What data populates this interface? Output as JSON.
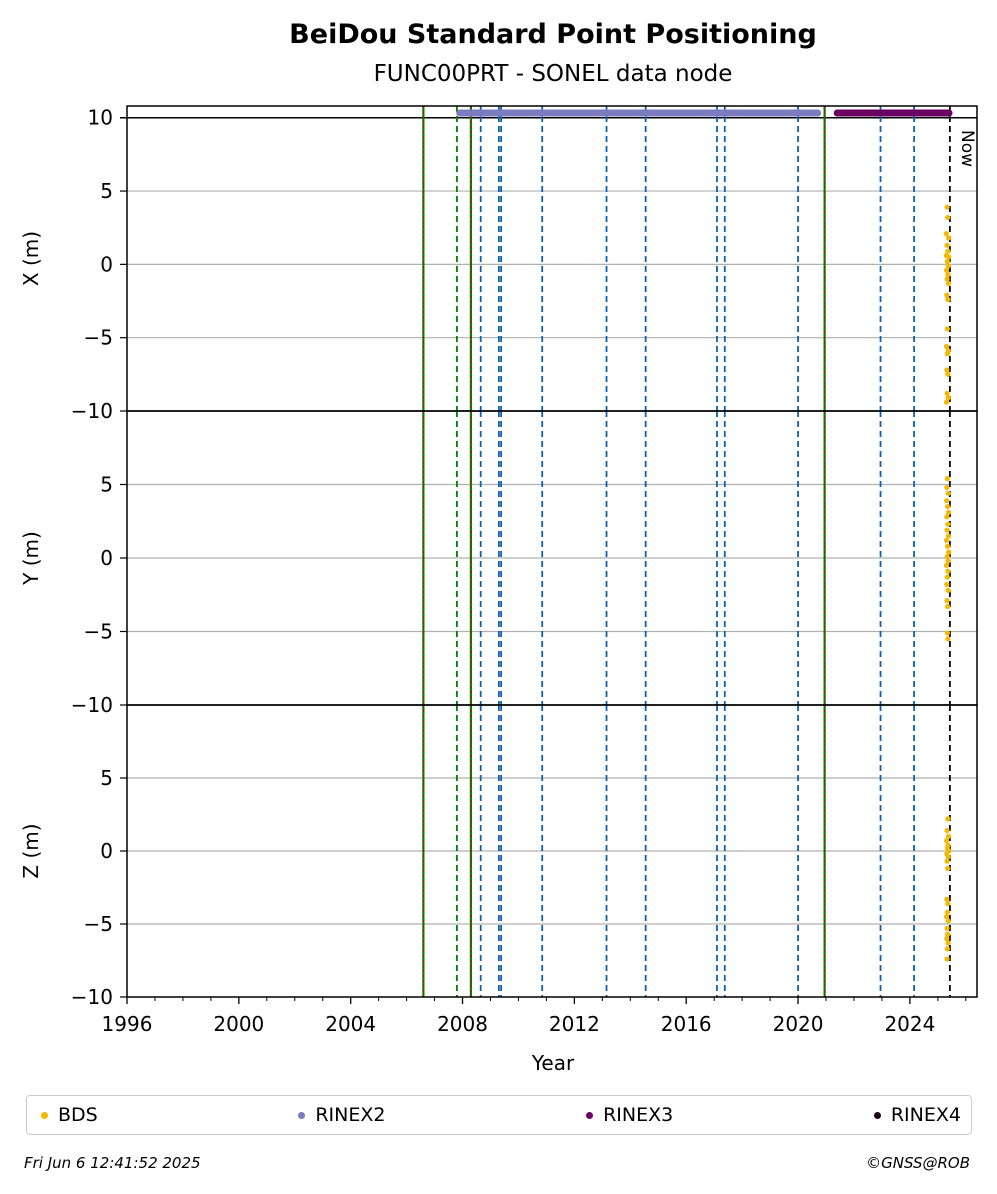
{
  "chart_data": {
    "type": "scatter",
    "title": "BeiDou Standard Point Positioning",
    "subtitle": "FUNC00PRT - SONEL data node",
    "xlabel": "Year",
    "xlim": [
      1996,
      2026.4
    ],
    "xticks": [
      1996,
      2000,
      2004,
      2008,
      2012,
      2016,
      2020,
      2024
    ],
    "now_label": "Now",
    "now_year": 2025.43,
    "panels": [
      {
        "ylabel": "X (m)",
        "ylim": [
          -10,
          10.8
        ],
        "yticks": [
          -10,
          -5,
          0,
          5,
          10
        ],
        "bds_points": [
          {
            "x": 2025.33,
            "y": 3.9
          },
          {
            "x": 2025.35,
            "y": 3.2
          },
          {
            "x": 2025.3,
            "y": 2.1
          },
          {
            "x": 2025.38,
            "y": 1.8
          },
          {
            "x": 2025.33,
            "y": 1.3
          },
          {
            "x": 2025.36,
            "y": 0.9
          },
          {
            "x": 2025.3,
            "y": 0.6
          },
          {
            "x": 2025.39,
            "y": 0.5
          },
          {
            "x": 2025.34,
            "y": 0.2
          },
          {
            "x": 2025.37,
            "y": -0.1
          },
          {
            "x": 2025.31,
            "y": -0.4
          },
          {
            "x": 2025.36,
            "y": -0.7
          },
          {
            "x": 2025.33,
            "y": -1.0
          },
          {
            "x": 2025.38,
            "y": -1.3
          },
          {
            "x": 2025.32,
            "y": -2.1
          },
          {
            "x": 2025.36,
            "y": -2.4
          },
          {
            "x": 2025.34,
            "y": -4.4
          },
          {
            "x": 2025.31,
            "y": -5.6
          },
          {
            "x": 2025.37,
            "y": -5.9
          },
          {
            "x": 2025.34,
            "y": -6.1
          },
          {
            "x": 2025.32,
            "y": -7.2
          },
          {
            "x": 2025.36,
            "y": -7.5
          },
          {
            "x": 2025.33,
            "y": -8.8
          },
          {
            "x": 2025.37,
            "y": -9.1
          },
          {
            "x": 2025.31,
            "y": -9.4
          }
        ]
      },
      {
        "ylabel": "Y (m)",
        "ylim": [
          -10,
          10
        ],
        "yticks": [
          -10,
          -5,
          0,
          5
        ],
        "bds_points": [
          {
            "x": 2025.34,
            "y": 5.4
          },
          {
            "x": 2025.32,
            "y": 4.8
          },
          {
            "x": 2025.37,
            "y": 4.4
          },
          {
            "x": 2025.31,
            "y": 3.9
          },
          {
            "x": 2025.35,
            "y": 3.5
          },
          {
            "x": 2025.38,
            "y": 3.1
          },
          {
            "x": 2025.32,
            "y": 2.8
          },
          {
            "x": 2025.36,
            "y": 2.3
          },
          {
            "x": 2025.33,
            "y": 1.9
          },
          {
            "x": 2025.38,
            "y": 1.5
          },
          {
            "x": 2025.31,
            "y": 1.2
          },
          {
            "x": 2025.35,
            "y": 0.8
          },
          {
            "x": 2025.39,
            "y": 0.4
          },
          {
            "x": 2025.33,
            "y": 0.1
          },
          {
            "x": 2025.37,
            "y": -0.2
          },
          {
            "x": 2025.31,
            "y": -0.5
          },
          {
            "x": 2025.36,
            "y": -0.9
          },
          {
            "x": 2025.34,
            "y": -1.3
          },
          {
            "x": 2025.32,
            "y": -1.8
          },
          {
            "x": 2025.37,
            "y": -2.2
          },
          {
            "x": 2025.33,
            "y": -2.9
          },
          {
            "x": 2025.35,
            "y": -3.3
          },
          {
            "x": 2025.34,
            "y": -5.1
          },
          {
            "x": 2025.36,
            "y": -5.5
          }
        ]
      },
      {
        "ylabel": "Z (m)",
        "ylim": [
          -10,
          10
        ],
        "yticks": [
          -10,
          -5,
          0,
          5
        ],
        "bds_points": [
          {
            "x": 2025.36,
            "y": 2.2
          },
          {
            "x": 2025.33,
            "y": 1.4
          },
          {
            "x": 2025.38,
            "y": 1.0
          },
          {
            "x": 2025.31,
            "y": 0.7
          },
          {
            "x": 2025.36,
            "y": 0.4
          },
          {
            "x": 2025.34,
            "y": 0.2
          },
          {
            "x": 2025.39,
            "y": 0.0
          },
          {
            "x": 2025.32,
            "y": -0.2
          },
          {
            "x": 2025.37,
            "y": -0.4
          },
          {
            "x": 2025.33,
            "y": -0.7
          },
          {
            "x": 2025.35,
            "y": -1.2
          },
          {
            "x": 2025.32,
            "y": -3.3
          },
          {
            "x": 2025.36,
            "y": -3.6
          },
          {
            "x": 2025.34,
            "y": -4.2
          },
          {
            "x": 2025.31,
            "y": -4.5
          },
          {
            "x": 2025.37,
            "y": -4.8
          },
          {
            "x": 2025.33,
            "y": -5.3
          },
          {
            "x": 2025.35,
            "y": -5.7
          },
          {
            "x": 2025.32,
            "y": -6.0
          },
          {
            "x": 2025.37,
            "y": -6.3
          },
          {
            "x": 2025.34,
            "y": -6.7
          },
          {
            "x": 2025.33,
            "y": -7.4
          }
        ]
      }
    ],
    "rinex_bars": [
      {
        "name": "RINEX2",
        "start": 2007.9,
        "end": 2020.7,
        "color": "#7b7bc0"
      },
      {
        "name": "RINEX3",
        "start": 2021.4,
        "end": 2025.4,
        "color": "#6a0060"
      }
    ],
    "event_lines": [
      {
        "year": 2006.6,
        "color": "#008000",
        "style": "solid",
        "overlay": "#d00000"
      },
      {
        "year": 2007.8,
        "color": "#008000",
        "style": "dashed"
      },
      {
        "year": 2008.3,
        "color": "#008000",
        "style": "solid",
        "overlay": "#d00000"
      },
      {
        "year": 2008.65,
        "color": "#1060b0",
        "style": "dashed"
      },
      {
        "year": 2009.3,
        "color": "#1060b0",
        "style": "dashed"
      },
      {
        "year": 2009.38,
        "color": "#1060b0",
        "style": "dashed"
      },
      {
        "year": 2010.85,
        "color": "#1060b0",
        "style": "dashed"
      },
      {
        "year": 2013.15,
        "color": "#1060b0",
        "style": "dashed"
      },
      {
        "year": 2014.55,
        "color": "#1060b0",
        "style": "dashed"
      },
      {
        "year": 2017.1,
        "color": "#1060b0",
        "style": "dashed"
      },
      {
        "year": 2017.38,
        "color": "#1060b0",
        "style": "dashed"
      },
      {
        "year": 2020.0,
        "color": "#1060b0",
        "style": "dashed"
      },
      {
        "year": 2020.95,
        "color": "#008000",
        "style": "solid",
        "overlay": "#d00000"
      },
      {
        "year": 2022.95,
        "color": "#1060b0",
        "style": "dashed"
      },
      {
        "year": 2024.15,
        "color": "#1060b0",
        "style": "dashed"
      }
    ],
    "legend": [
      {
        "label": "BDS",
        "color": "#f5b800"
      },
      {
        "label": "RINEX2",
        "color": "#7b7bc0"
      },
      {
        "label": "RINEX3",
        "color": "#6a0060"
      },
      {
        "label": "RINEX4",
        "color": "#1a0018"
      }
    ],
    "legend_position": "bottom",
    "grid": "horizontal"
  },
  "footer": {
    "timestamp": "Fri Jun  6 12:41:52 2025",
    "credit": "©GNSS@ROB"
  }
}
